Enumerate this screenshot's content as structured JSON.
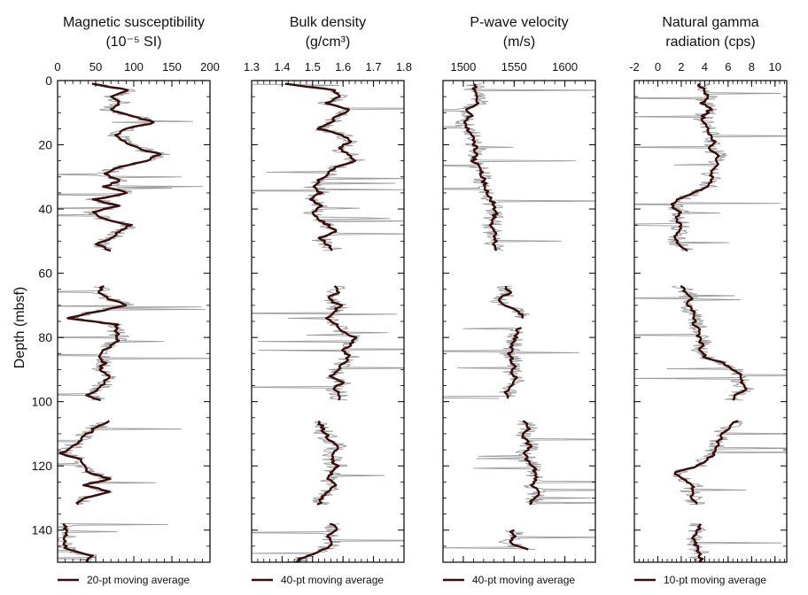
{
  "figure": {
    "y_axis_label": "Depth (mbsf)"
  },
  "chart_data": [
    {
      "type": "line",
      "title_lines": [
        "Magnetic susceptibility",
        "(10⁻⁵ SI)"
      ],
      "xlim": [
        0,
        200
      ],
      "x_ticks": [
        0,
        50,
        100,
        150,
        200
      ],
      "ylim": [
        0,
        150
      ],
      "y_ticks": [
        0,
        20,
        40,
        60,
        80,
        100,
        120,
        140
      ],
      "y_inverted": true,
      "legend": "20-pt moving average",
      "raw_color": "#9a9a9a",
      "avg_color": "#3a0d0d",
      "segments": [
        {
          "depth": [
            1,
            3,
            5,
            7,
            9,
            11,
            13,
            15,
            17,
            19,
            21,
            23,
            25,
            27,
            29,
            31,
            33,
            35,
            37,
            39,
            41,
            43,
            45,
            47,
            49,
            51,
            53
          ],
          "value": [
            45,
            95,
            72,
            82,
            68,
            98,
            128,
            90,
            78,
            88,
            105,
            135,
            115,
            80,
            60,
            82,
            62,
            92,
            48,
            80,
            45,
            60,
            95,
            80,
            70,
            52,
            70
          ]
        },
        {
          "depth": [
            64,
            66,
            68,
            70,
            72,
            74,
            76,
            78,
            80,
            82,
            84,
            86,
            88,
            90,
            92,
            94,
            96,
            98,
            99.5
          ],
          "value": [
            60,
            55,
            68,
            90,
            50,
            15,
            78,
            75,
            80,
            75,
            60,
            55,
            62,
            55,
            70,
            60,
            55,
            40,
            55
          ]
        },
        {
          "depth": [
            106,
            108,
            110,
            112,
            114,
            116,
            118,
            120,
            122,
            124,
            126,
            128,
            130,
            132
          ],
          "value": [
            70,
            50,
            40,
            30,
            20,
            5,
            30,
            35,
            40,
            70,
            35,
            70,
            35,
            25
          ]
        },
        {
          "depth": [
            138,
            140,
            142,
            144,
            146,
            148,
            150
          ],
          "value": [
            10,
            12,
            11,
            10,
            12,
            45,
            40
          ]
        }
      ]
    },
    {
      "type": "line",
      "title_lines": [
        "Bulk density",
        "(g/cm³)"
      ],
      "xlim": [
        1.3,
        1.8
      ],
      "x_ticks": [
        1.3,
        1.4,
        1.5,
        1.6,
        1.7,
        1.8
      ],
      "ylim": [
        0,
        150
      ],
      "y_ticks": [
        0,
        20,
        40,
        60,
        80,
        100,
        120,
        140
      ],
      "y_inverted": true,
      "legend": "40-pt moving average",
      "raw_color": "#9a9a9a",
      "avg_color": "#3a0d0d",
      "segments": [
        {
          "depth": [
            1,
            3,
            5,
            7,
            9,
            11,
            13,
            15,
            17,
            19,
            21,
            23,
            25,
            27,
            29,
            31,
            33,
            35,
            37,
            39,
            41,
            43,
            45,
            47,
            49,
            51,
            53
          ],
          "value": [
            1.41,
            1.57,
            1.59,
            1.55,
            1.62,
            1.58,
            1.56,
            1.52,
            1.6,
            1.63,
            1.58,
            1.62,
            1.64,
            1.58,
            1.55,
            1.52,
            1.5,
            1.53,
            1.49,
            1.53,
            1.5,
            1.52,
            1.55,
            1.58,
            1.52,
            1.55,
            1.57
          ]
        },
        {
          "depth": [
            64,
            66,
            68,
            70,
            72,
            74,
            76,
            78,
            80,
            82,
            84,
            86,
            88,
            90,
            92,
            94,
            96,
            98,
            99.5
          ],
          "value": [
            1.57,
            1.58,
            1.55,
            1.59,
            1.57,
            1.55,
            1.58,
            1.6,
            1.64,
            1.63,
            1.6,
            1.62,
            1.6,
            1.58,
            1.56,
            1.6,
            1.57,
            1.59,
            1.58
          ]
        },
        {
          "depth": [
            106,
            108,
            110,
            112,
            114,
            116,
            118,
            120,
            122,
            124,
            126,
            128,
            130,
            132
          ],
          "value": [
            1.52,
            1.53,
            1.54,
            1.56,
            1.58,
            1.57,
            1.56,
            1.58,
            1.56,
            1.55,
            1.57,
            1.55,
            1.53,
            1.52
          ]
        },
        {
          "depth": [
            138,
            140,
            142,
            144,
            146,
            148,
            150
          ],
          "value": [
            1.56,
            1.58,
            1.55,
            1.56,
            1.54,
            1.48,
            1.44
          ]
        }
      ]
    },
    {
      "type": "line",
      "title_lines": [
        "P-wave velocity",
        "(m/s)"
      ],
      "xlim": [
        1480,
        1630
      ],
      "x_ticks": [
        1500,
        1550,
        1600
      ],
      "ylim": [
        0,
        150
      ],
      "y_ticks": [
        0,
        20,
        40,
        60,
        80,
        100,
        120,
        140
      ],
      "y_inverted": true,
      "legend": "40-pt moving average",
      "raw_color": "#9a9a9a",
      "avg_color": "#3a0d0d",
      "segments": [
        {
          "depth": [
            1,
            3,
            5,
            7,
            9,
            11,
            13,
            15,
            17,
            19,
            21,
            23,
            25,
            27,
            29,
            31,
            33,
            35,
            37,
            39,
            41,
            43,
            45,
            47,
            49,
            51,
            53
          ],
          "value": [
            1512,
            1510,
            1512,
            1515,
            1505,
            1508,
            1500,
            1504,
            1510,
            1510,
            1512,
            1512,
            1510,
            1515,
            1518,
            1520,
            1522,
            1524,
            1528,
            1530,
            1532,
            1530,
            1528,
            1530,
            1532,
            1530,
            1532
          ]
        },
        {
          "depth": [
            64,
            66,
            68,
            70,
            72,
            74
          ],
          "value": [
            1540,
            1545,
            1535,
            1540,
            1555,
            1560
          ]
        },
        {
          "depth": [
            77,
            79,
            81,
            83,
            85,
            87,
            89,
            91,
            93,
            95,
            97,
            99
          ],
          "value": [
            1555,
            1552,
            1550,
            1548,
            1545,
            1548,
            1550,
            1548,
            1552,
            1548,
            1542,
            1545
          ]
        },
        {
          "depth": [
            106,
            108,
            110,
            112,
            114,
            116,
            118,
            120,
            122,
            124,
            126,
            128,
            130,
            132
          ],
          "value": [
            1560,
            1565,
            1558,
            1562,
            1565,
            1560,
            1562,
            1568,
            1572,
            1570,
            1568,
            1575,
            1570,
            1565
          ]
        },
        {
          "depth": [
            140,
            142,
            144,
            146
          ],
          "value": [
            1548,
            1550,
            1545,
            1562
          ]
        }
      ]
    },
    {
      "type": "line",
      "title_lines": [
        "Natural gamma",
        "radiation (cps)"
      ],
      "xlim": [
        -2,
        11
      ],
      "x_ticks": [
        -2,
        0,
        2,
        4,
        6,
        8,
        10
      ],
      "ylim": [
        0,
        150
      ],
      "y_ticks": [
        0,
        20,
        40,
        60,
        80,
        100,
        120,
        140
      ],
      "y_inverted": true,
      "legend": "10-pt moving average",
      "raw_color": "#9a9a9a",
      "avg_color": "#3a0d0d",
      "segments": [
        {
          "depth": [
            1,
            3,
            5,
            7,
            9,
            11,
            13,
            15,
            17,
            19,
            21,
            23,
            25,
            27,
            29,
            31,
            33,
            35,
            37,
            39,
            41,
            43,
            45,
            47,
            49,
            51,
            53
          ],
          "value": [
            3.5,
            4.0,
            4.2,
            3.8,
            4.5,
            3.8,
            4.0,
            4.2,
            4.5,
            4.8,
            4.5,
            5.0,
            5.2,
            4.8,
            4.5,
            4.6,
            4.3,
            3.0,
            1.8,
            1.2,
            2.0,
            1.5,
            2.0,
            1.8,
            1.5,
            1.8,
            2.5
          ]
        },
        {
          "depth": [
            64,
            66,
            68,
            70,
            72,
            74,
            76,
            78,
            80,
            82,
            84,
            86,
            88,
            90,
            92,
            94,
            96,
            98,
            99.5
          ],
          "value": [
            2.0,
            2.4,
            2.8,
            2.6,
            3.0,
            3.0,
            3.2,
            3.5,
            3.5,
            3.8,
            3.6,
            4.0,
            5.5,
            6.5,
            7.2,
            7.0,
            7.5,
            6.5,
            6.5
          ]
        },
        {
          "depth": [
            106,
            108,
            110,
            112,
            114,
            116,
            118,
            120,
            122,
            124,
            126,
            128,
            130,
            132
          ],
          "value": [
            6.8,
            6.0,
            5.5,
            5.2,
            5.0,
            4.8,
            4.2,
            3.5,
            1.5,
            2.0,
            3.0,
            2.8,
            3.0,
            3.2
          ]
        },
        {
          "depth": [
            138,
            140,
            142,
            144,
            146,
            148,
            150
          ],
          "value": [
            3.5,
            3.5,
            3.0,
            3.2,
            3.5,
            3.5,
            3.8
          ]
        }
      ]
    }
  ]
}
